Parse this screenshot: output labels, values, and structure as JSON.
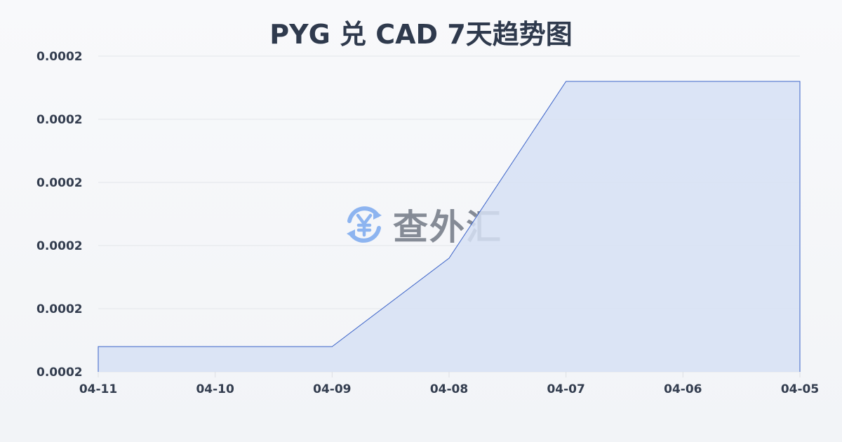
{
  "chart_data": {
    "type": "area",
    "title": "PYG 兑 CAD 7天趋势图",
    "xlabel": "",
    "ylabel": "",
    "categories": [
      "04-11",
      "04-10",
      "04-09",
      "04-08",
      "04-07",
      "04-06",
      "04-05"
    ],
    "values": [
      0.0001958,
      0.0001958,
      0.0001958,
      0.0001986,
      0.0002042,
      0.0002042,
      0.0002042
    ],
    "ylim": [
      0.000195,
      0.000205
    ],
    "yticks": [
      0.000195,
      0.000197,
      0.000199,
      0.000201,
      0.000203,
      0.000205
    ],
    "ytick_labels": [
      "0.0002",
      "0.0002",
      "0.0002",
      "0.0002",
      "0.0002",
      "0.0002"
    ],
    "grid": true,
    "line_color": "#3a62c8",
    "fill_color": "#d6e0f5"
  },
  "watermark": {
    "text": "查外汇",
    "icon": "yen-exchange-icon",
    "icon_color": "#8db4f0"
  }
}
